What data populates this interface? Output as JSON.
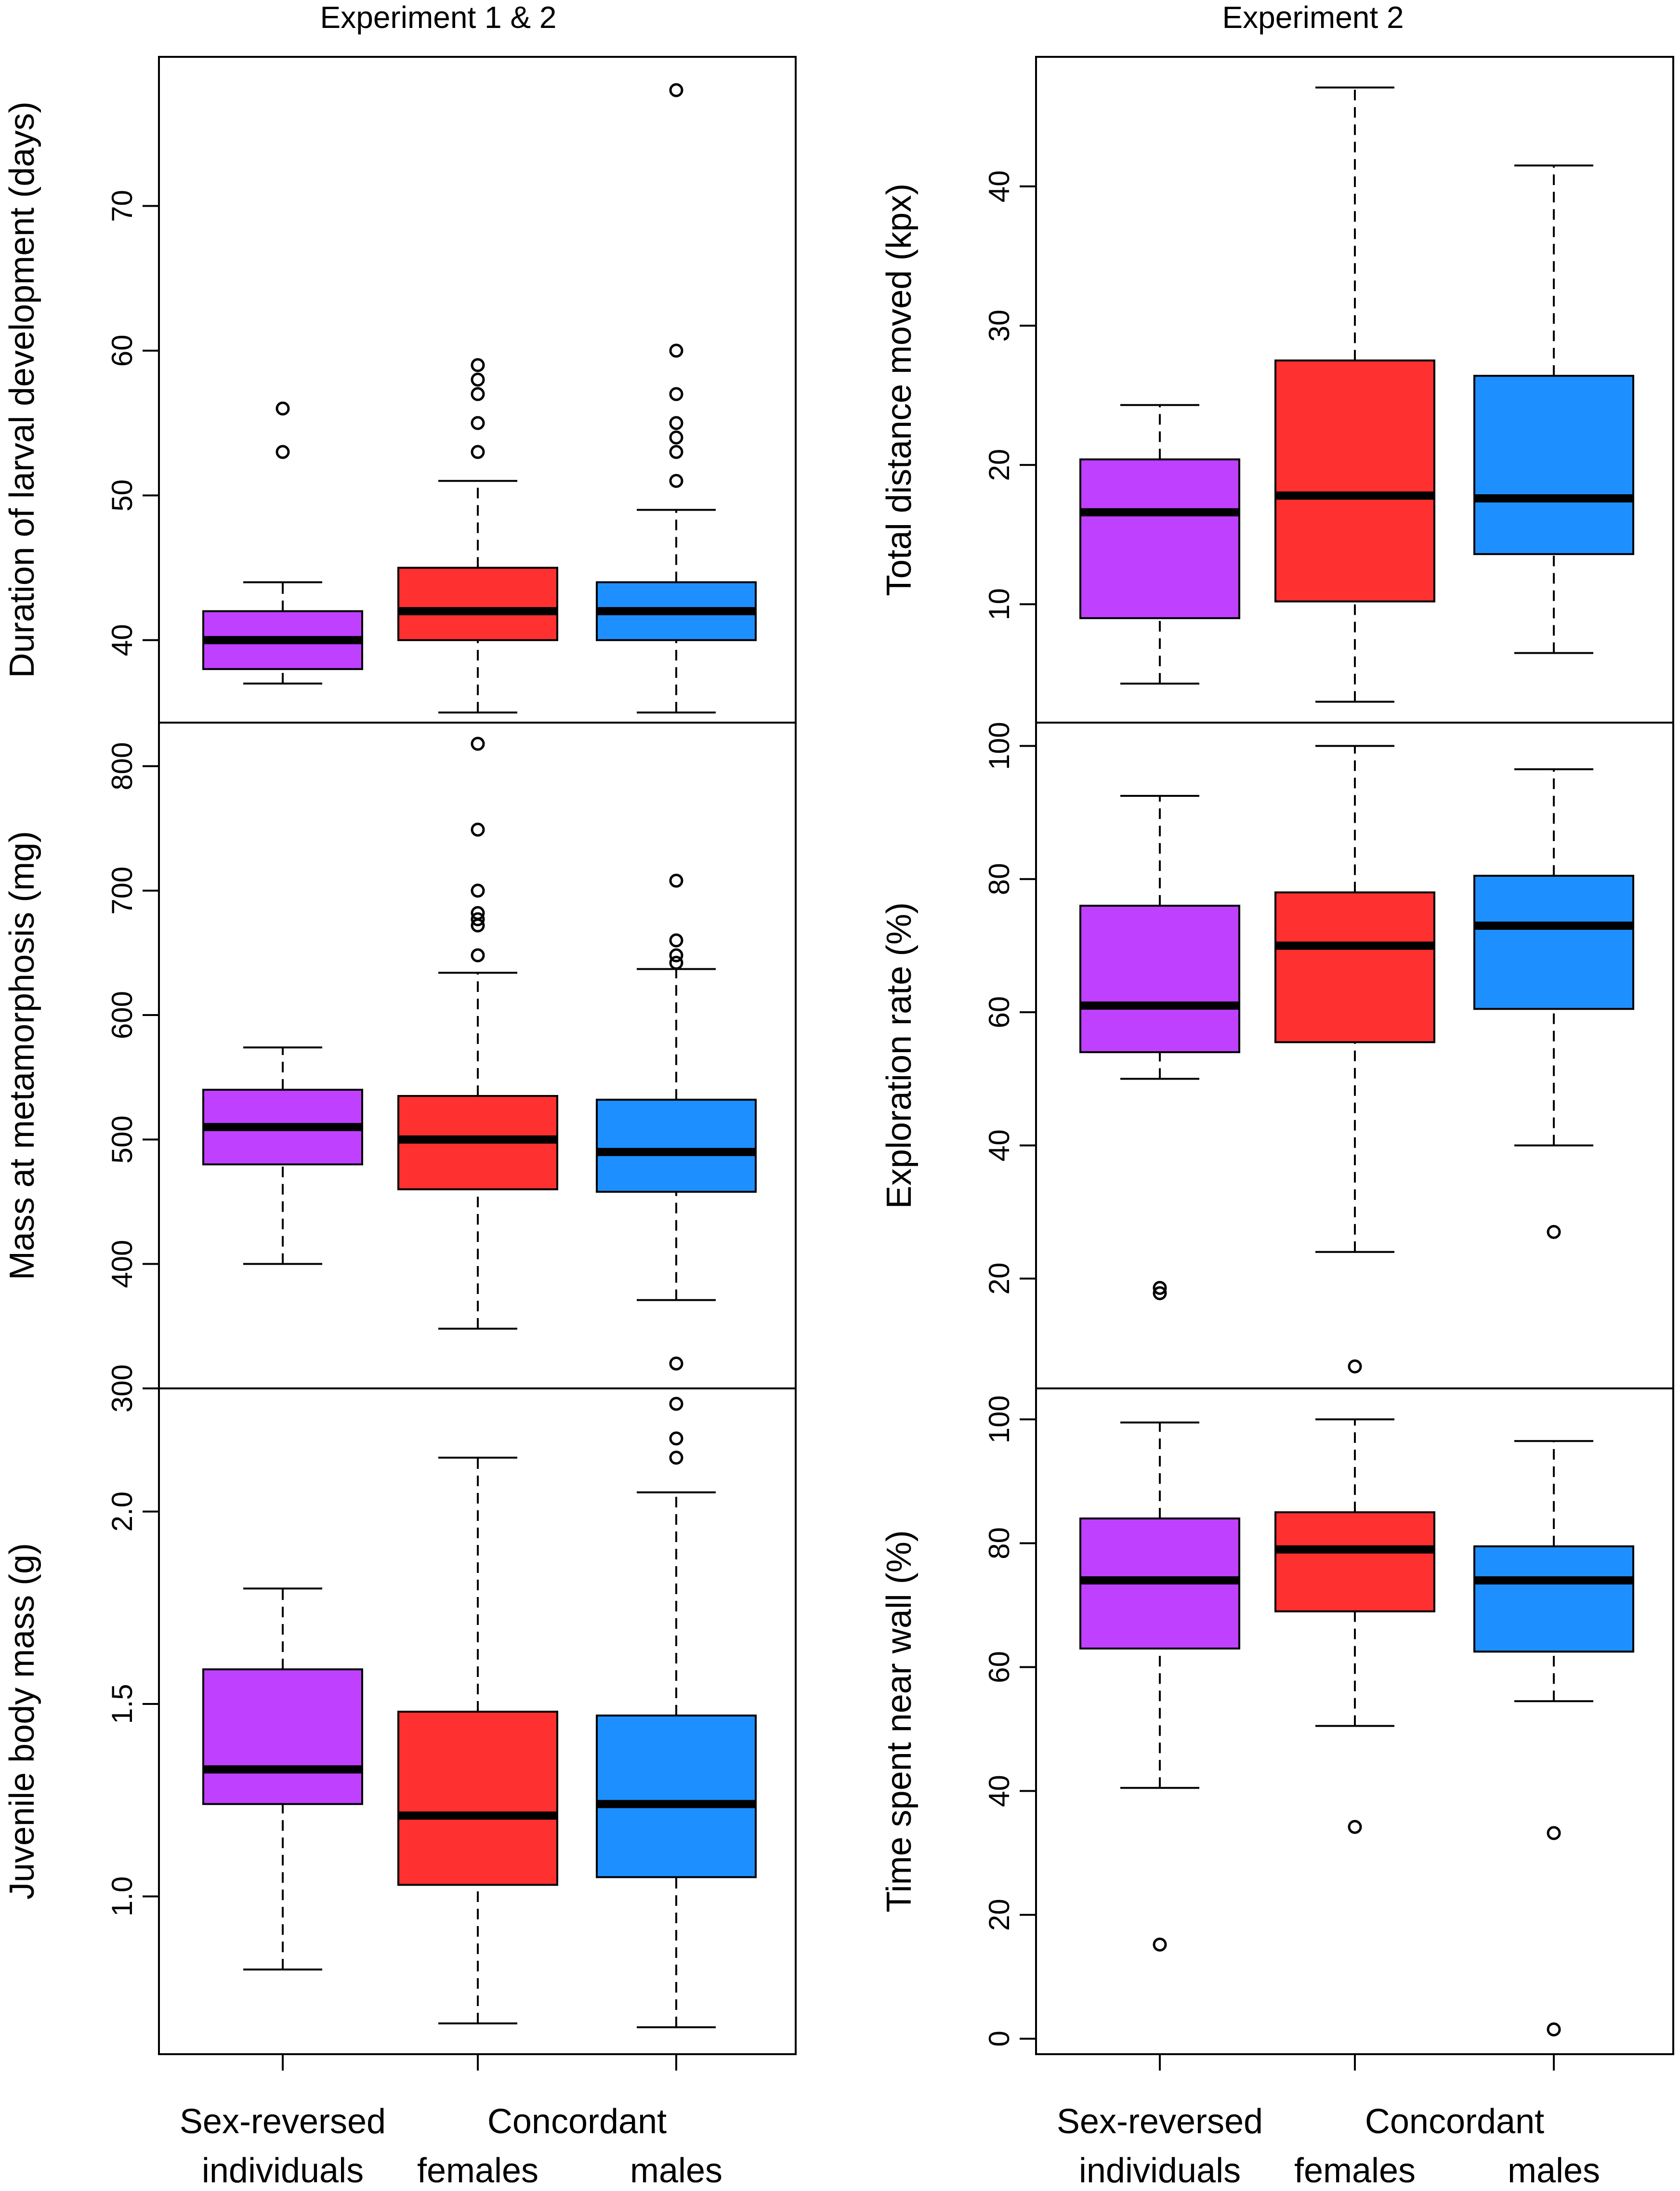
{
  "figure": {
    "column_titles": [
      "Experiment 1 & 2",
      "Experiment 2"
    ],
    "group_labels": [
      {
        "line1": "Sex-reversed",
        "line2": "individuals"
      },
      {
        "line1": "Concordant",
        "line2": "females"
      },
      {
        "line1": "",
        "line2": "males"
      }
    ],
    "colors": {
      "sex_reversed": "#BF40FF",
      "females": "#FF3030",
      "males": "#1E8FFF",
      "axis": "#000000",
      "median": "#000000"
    }
  },
  "chart_data": [
    {
      "id": "larval",
      "type": "box",
      "column": "Experiment 1 & 2",
      "ylabel": "Duration of larval development (days)",
      "ylim": [
        34.3,
        80.3
      ],
      "yticks": [
        40,
        50,
        60,
        70
      ],
      "categories": [
        "Sex-reversed individuals",
        "Concordant females",
        "Concordant males"
      ],
      "boxes": [
        {
          "lower_whisker": 37,
          "q1": 38,
          "median": 40,
          "q3": 42,
          "upper_whisker": 44,
          "outliers": [
            53,
            56
          ]
        },
        {
          "lower_whisker": 35,
          "q1": 40,
          "median": 42,
          "q3": 45,
          "upper_whisker": 51,
          "outliers": [
            53,
            55,
            57,
            58,
            59
          ]
        },
        {
          "lower_whisker": 35,
          "q1": 40,
          "median": 42,
          "q3": 44,
          "upper_whisker": 49,
          "outliers": [
            51,
            53,
            54,
            55,
            57,
            60,
            78
          ]
        }
      ]
    },
    {
      "id": "mass_meta",
      "type": "box",
      "column": "Experiment 1 & 2",
      "ylabel": "Mass at metamorphosis (mg)",
      "ylim": [
        300,
        835
      ],
      "yticks": [
        300,
        400,
        500,
        600,
        700,
        800
      ],
      "categories": [
        "Sex-reversed individuals",
        "Concordant females",
        "Concordant males"
      ],
      "boxes": [
        {
          "lower_whisker": 400,
          "q1": 480,
          "median": 510,
          "q3": 540,
          "upper_whisker": 574,
          "outliers": []
        },
        {
          "lower_whisker": 348,
          "q1": 460,
          "median": 500,
          "q3": 535,
          "upper_whisker": 634,
          "outliers": [
            648,
            672,
            677,
            682,
            700,
            749,
            818
          ]
        },
        {
          "lower_whisker": 371,
          "q1": 458,
          "median": 490,
          "q3": 532,
          "upper_whisker": 637,
          "outliers": [
            320,
            642,
            648,
            660,
            708
          ]
        }
      ]
    },
    {
      "id": "juvenile",
      "type": "box",
      "column": "Experiment 1 & 2",
      "ylabel": "Juvenile body mass (g)",
      "ylim": [
        0.59,
        2.32
      ],
      "yticks": [
        1.0,
        1.5,
        2.0
      ],
      "categories": [
        "Sex-reversed individuals",
        "Concordant females",
        "Concordant males"
      ],
      "boxes": [
        {
          "lower_whisker": 0.81,
          "q1": 1.24,
          "median": 1.33,
          "q3": 1.59,
          "upper_whisker": 1.8,
          "outliers": []
        },
        {
          "lower_whisker": 0.67,
          "q1": 1.03,
          "median": 1.21,
          "q3": 1.48,
          "upper_whisker": 2.14,
          "outliers": []
        },
        {
          "lower_whisker": 0.66,
          "q1": 1.05,
          "median": 1.24,
          "q3": 1.47,
          "upper_whisker": 2.05,
          "outliers": [
            2.14,
            2.19,
            2.28
          ]
        }
      ]
    },
    {
      "id": "distance",
      "type": "box",
      "column": "Experiment 2",
      "ylabel": "Total distance moved (kpx)",
      "ylim": [
        1.5,
        49.3
      ],
      "yticks": [
        10,
        20,
        30,
        40
      ],
      "categories": [
        "Sex-reversed individuals",
        "Concordant females",
        "Concordant males"
      ],
      "boxes": [
        {
          "lower_whisker": 4.3,
          "q1": 9.0,
          "median": 16.6,
          "q3": 20.4,
          "upper_whisker": 24.3,
          "outliers": []
        },
        {
          "lower_whisker": 3.0,
          "q1": 10.2,
          "median": 17.8,
          "q3": 27.5,
          "upper_whisker": 47.1,
          "outliers": []
        },
        {
          "lower_whisker": 6.5,
          "q1": 13.6,
          "median": 17.6,
          "q3": 26.4,
          "upper_whisker": 41.5,
          "outliers": []
        }
      ]
    },
    {
      "id": "exploration",
      "type": "box",
      "column": "Experiment 2",
      "ylabel": "Exploration rate (%)",
      "ylim": [
        3.5,
        103.5
      ],
      "yticks": [
        20,
        40,
        60,
        80,
        100
      ],
      "categories": [
        "Sex-reversed individuals",
        "Concordant females",
        "Concordant males"
      ],
      "boxes": [
        {
          "lower_whisker": 50,
          "q1": 54,
          "median": 61,
          "q3": 76,
          "upper_whisker": 92.5,
          "outliers": [
            17.8,
            18.6
          ]
        },
        {
          "lower_whisker": 24,
          "q1": 55.5,
          "median": 70,
          "q3": 78,
          "upper_whisker": 100,
          "outliers": [
            6.8
          ]
        },
        {
          "lower_whisker": 40,
          "q1": 60.5,
          "median": 73,
          "q3": 80.5,
          "upper_whisker": 96.5,
          "outliers": [
            27
          ]
        }
      ]
    },
    {
      "id": "wall",
      "type": "box",
      "column": "Experiment 2",
      "ylabel": "Time spent near wall (%)",
      "ylim": [
        -2.5,
        105
      ],
      "yticks": [
        0,
        20,
        40,
        60,
        80,
        100
      ],
      "categories": [
        "Sex-reversed individuals",
        "Concordant females",
        "Concordant males"
      ],
      "boxes": [
        {
          "lower_whisker": 40.5,
          "q1": 63,
          "median": 74,
          "q3": 84,
          "upper_whisker": 99.5,
          "outliers": [
            15.2
          ]
        },
        {
          "lower_whisker": 50.5,
          "q1": 69,
          "median": 79,
          "q3": 85,
          "upper_whisker": 100,
          "outliers": [
            34.2
          ]
        },
        {
          "lower_whisker": 54.5,
          "q1": 62.5,
          "median": 74,
          "q3": 79.5,
          "upper_whisker": 96.5,
          "outliers": [
            1.5,
            33.2
          ]
        }
      ]
    }
  ]
}
